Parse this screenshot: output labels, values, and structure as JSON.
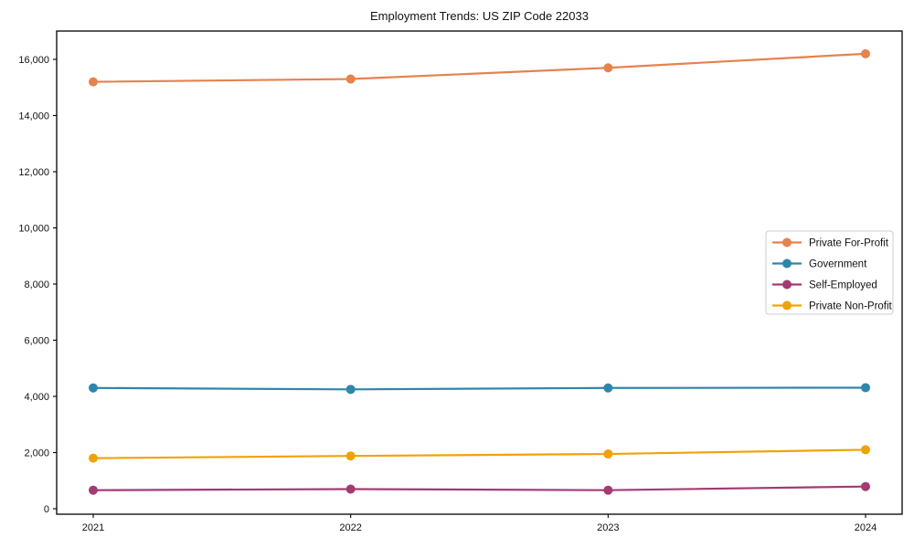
{
  "chart_data": {
    "type": "line",
    "title": "Employment Trends: US ZIP Code 22033",
    "categories": [
      "2021",
      "2022",
      "2023",
      "2024"
    ],
    "series": [
      {
        "name": "Private For-Profit",
        "color": "#e5824e",
        "values": [
          15200,
          15300,
          15700,
          16200
        ]
      },
      {
        "name": "Government",
        "color": "#2e86ab",
        "values": [
          4300,
          4250,
          4300,
          4310
        ]
      },
      {
        "name": "Self-Employed",
        "color": "#a23b72",
        "values": [
          660,
          700,
          660,
          790
        ]
      },
      {
        "name": "Private Non-Profit",
        "color": "#f1a208",
        "values": [
          1800,
          1880,
          1950,
          2100
        ]
      }
    ],
    "xlabel": "",
    "ylabel": "",
    "ylim": [
      0,
      16000
    ],
    "y_tick_step": 2000,
    "y_tick_labels": [
      "0",
      "2,000",
      "4,000",
      "6,000",
      "8,000",
      "10,000",
      "12,000",
      "14,000",
      "16,000"
    ],
    "grid": false,
    "legend_position": "right-middle",
    "marker": "circle"
  },
  "colors": {
    "background": "#ffffff",
    "axis": "#000000",
    "text": "#111111",
    "legend_border": "#cccccc",
    "legend_background": "#ffffff"
  }
}
